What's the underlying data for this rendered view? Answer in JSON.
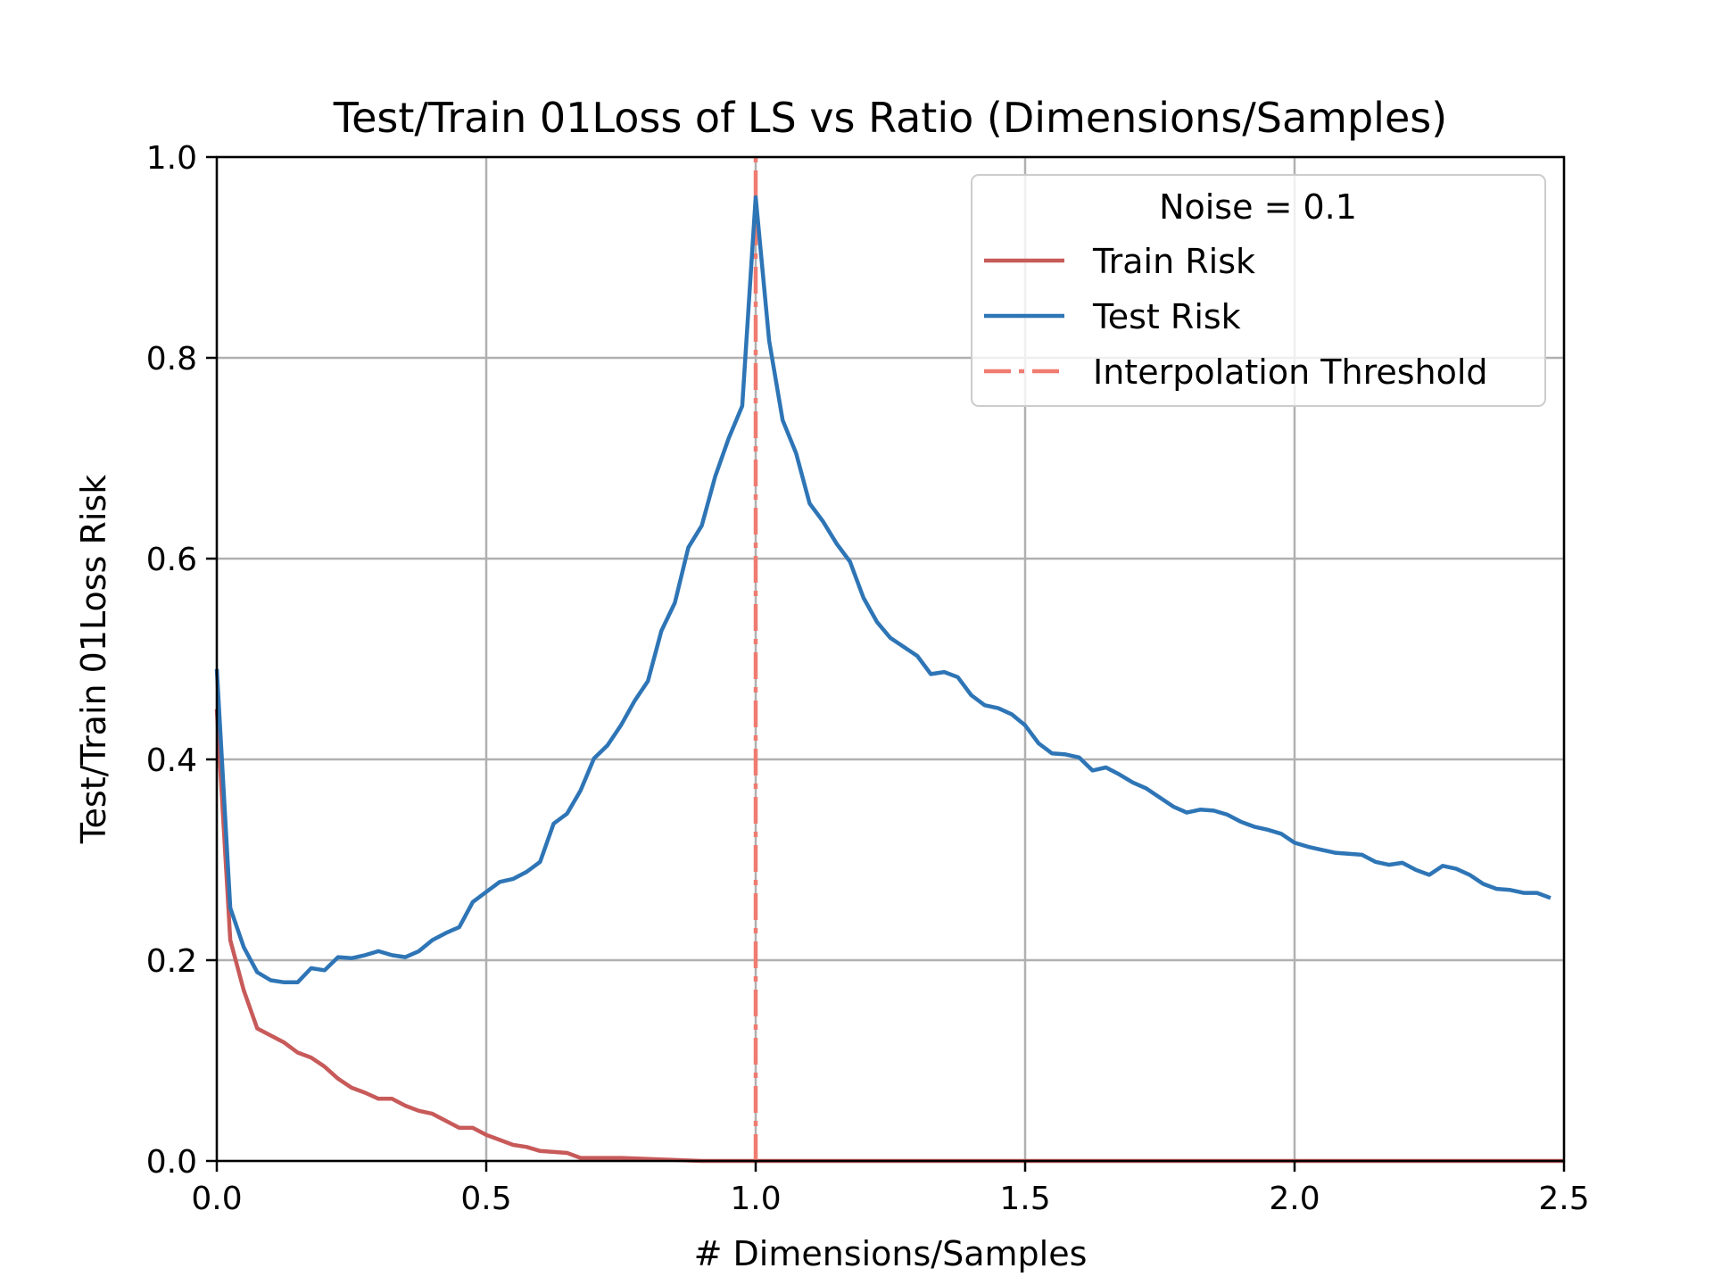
{
  "chart_data": {
    "type": "line",
    "title": "Test/Train 01Loss of LS vs Ratio (Dimensions/Samples)",
    "xlabel": "# Dimensions/Samples",
    "ylabel": "Test/Train 01Loss Risk",
    "xlim": [
      0,
      2.5
    ],
    "ylim": [
      0,
      1.0
    ],
    "xticks": [
      "0.0",
      "0.5",
      "1.0",
      "1.5",
      "2.0",
      "2.5"
    ],
    "yticks": [
      "0.0",
      "0.2",
      "0.4",
      "0.6",
      "0.8",
      "1.0"
    ],
    "grid": true,
    "legend": {
      "title": "Noise = 0.1",
      "placement": "top-right"
    },
    "series": [
      {
        "name": "Train Risk",
        "color": "#c85a5a",
        "line_style": "solid",
        "x": [
          0.0,
          0.025,
          0.05,
          0.075,
          0.1,
          0.125,
          0.15,
          0.175,
          0.2,
          0.225,
          0.25,
          0.275,
          0.3,
          0.325,
          0.35,
          0.375,
          0.4,
          0.425,
          0.45,
          0.475,
          0.5,
          0.525,
          0.55,
          0.575,
          0.6,
          0.625,
          0.65,
          0.675,
          0.7,
          0.75,
          0.8,
          0.85,
          0.9,
          1.0,
          1.5,
          2.0,
          2.5
        ],
        "y": [
          0.45,
          0.22,
          0.17,
          0.132,
          0.125,
          0.118,
          0.108,
          0.103,
          0.094,
          0.082,
          0.073,
          0.068,
          0.062,
          0.062,
          0.055,
          0.05,
          0.047,
          0.04,
          0.033,
          0.033,
          0.026,
          0.021,
          0.016,
          0.014,
          0.01,
          0.009,
          0.008,
          0.003,
          0.003,
          0.003,
          0.002,
          0.001,
          0.0,
          0.0,
          0.0,
          0.0,
          0.0
        ]
      },
      {
        "name": "Test Risk",
        "color": "#2e75b6",
        "line_style": "solid",
        "x": [
          0.0,
          0.025,
          0.05,
          0.075,
          0.1,
          0.125,
          0.15,
          0.175,
          0.2,
          0.225,
          0.25,
          0.275,
          0.3,
          0.325,
          0.35,
          0.375,
          0.4,
          0.425,
          0.45,
          0.475,
          0.5,
          0.525,
          0.55,
          0.575,
          0.6,
          0.625,
          0.65,
          0.675,
          0.7,
          0.725,
          0.75,
          0.775,
          0.8,
          0.825,
          0.85,
          0.875,
          0.9,
          0.925,
          0.95,
          0.975,
          1.0,
          1.025,
          1.05,
          1.075,
          1.1,
          1.125,
          1.15,
          1.175,
          1.2,
          1.225,
          1.25,
          1.275,
          1.3,
          1.325,
          1.35,
          1.375,
          1.4,
          1.425,
          1.45,
          1.475,
          1.5,
          1.525,
          1.55,
          1.575,
          1.6,
          1.625,
          1.65,
          1.675,
          1.7,
          1.725,
          1.75,
          1.775,
          1.8,
          1.825,
          1.85,
          1.875,
          1.9,
          1.925,
          1.95,
          1.975,
          2.0,
          2.025,
          2.05,
          2.075,
          2.1,
          2.125,
          2.15,
          2.175,
          2.2,
          2.225,
          2.25,
          2.275,
          2.3,
          2.325,
          2.35,
          2.375,
          2.4,
          2.425,
          2.45,
          2.475
        ],
        "y": [
          0.49,
          0.252,
          0.213,
          0.188,
          0.18,
          0.178,
          0.178,
          0.192,
          0.19,
          0.203,
          0.202,
          0.205,
          0.209,
          0.205,
          0.203,
          0.209,
          0.22,
          0.227,
          0.233,
          0.258,
          0.268,
          0.278,
          0.281,
          0.288,
          0.298,
          0.336,
          0.346,
          0.369,
          0.401,
          0.414,
          0.434,
          0.458,
          0.478,
          0.528,
          0.556,
          0.611,
          0.633,
          0.682,
          0.72,
          0.752,
          0.96,
          0.817,
          0.738,
          0.705,
          0.655,
          0.637,
          0.615,
          0.597,
          0.561,
          0.537,
          0.521,
          0.512,
          0.503,
          0.485,
          0.487,
          0.482,
          0.464,
          0.454,
          0.451,
          0.445,
          0.434,
          0.416,
          0.406,
          0.405,
          0.402,
          0.389,
          0.392,
          0.385,
          0.377,
          0.371,
          0.362,
          0.353,
          0.347,
          0.35,
          0.349,
          0.345,
          0.338,
          0.333,
          0.33,
          0.326,
          0.317,
          0.313,
          0.31,
          0.307,
          0.306,
          0.305,
          0.298,
          0.295,
          0.297,
          0.29,
          0.285,
          0.294,
          0.291,
          0.285,
          0.276,
          0.271,
          0.27,
          0.267,
          0.267,
          0.262
        ]
      },
      {
        "name": "Interpolation Threshold",
        "color": "#f07b70",
        "line_style": "dashdot",
        "x": [
          1.0,
          1.0
        ],
        "y": [
          0.0,
          1.0
        ]
      }
    ]
  }
}
